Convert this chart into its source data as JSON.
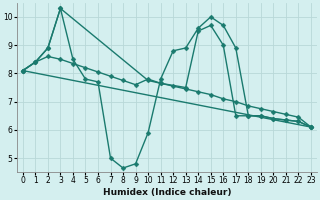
{
  "xlabel": "Humidex (Indice chaleur)",
  "background_color": "#d4efef",
  "grid_color": "#b8d8d8",
  "line_color": "#1a7a6e",
  "line_width": 1.0,
  "marker": "D",
  "marker_size": 2.5,
  "xlim": [
    -0.5,
    23.5
  ],
  "ylim": [
    4.5,
    10.5
  ],
  "xticks": [
    0,
    1,
    2,
    3,
    4,
    5,
    6,
    7,
    8,
    9,
    10,
    11,
    12,
    13,
    14,
    15,
    16,
    17,
    18,
    19,
    20,
    21,
    22,
    23
  ],
  "yticks": [
    5,
    6,
    7,
    8,
    9,
    10
  ],
  "lines": [
    {
      "x": [
        0,
        1,
        2,
        3,
        4,
        5,
        6,
        7,
        8,
        9,
        10,
        11,
        12,
        13,
        14,
        15,
        16,
        17,
        18,
        19,
        20,
        21,
        22,
        23
      ],
      "y": [
        8.1,
        8.4,
        8.9,
        10.3,
        8.5,
        7.8,
        7.7,
        5.0,
        4.65,
        4.8,
        5.9,
        7.8,
        8.8,
        8.9,
        9.6,
        10.0,
        9.7,
        8.9,
        6.5,
        6.5,
        6.4,
        6.35,
        6.3,
        6.1
      ]
    },
    {
      "x": [
        0,
        1,
        2,
        3,
        4,
        5,
        6,
        7,
        8,
        9,
        10,
        11,
        12,
        13,
        14,
        15,
        16,
        17,
        18,
        19,
        20,
        21,
        22,
        23
      ],
      "y": [
        8.1,
        8.4,
        8.6,
        8.5,
        8.35,
        8.2,
        8.05,
        7.9,
        7.75,
        7.6,
        7.8,
        7.65,
        7.55,
        7.45,
        7.35,
        7.25,
        7.1,
        7.0,
        6.85,
        6.75,
        6.65,
        6.55,
        6.45,
        6.1
      ]
    },
    {
      "x": [
        0,
        23
      ],
      "y": [
        8.1,
        6.1
      ]
    },
    {
      "x": [
        0,
        1,
        2,
        3,
        10,
        11,
        13,
        14,
        15,
        16,
        17,
        18,
        19,
        20,
        21,
        22,
        23
      ],
      "y": [
        8.1,
        8.4,
        8.9,
        10.3,
        7.75,
        7.65,
        7.5,
        9.5,
        9.7,
        9.0,
        6.5,
        6.5,
        6.5,
        6.4,
        6.35,
        6.3,
        6.1
      ]
    }
  ]
}
